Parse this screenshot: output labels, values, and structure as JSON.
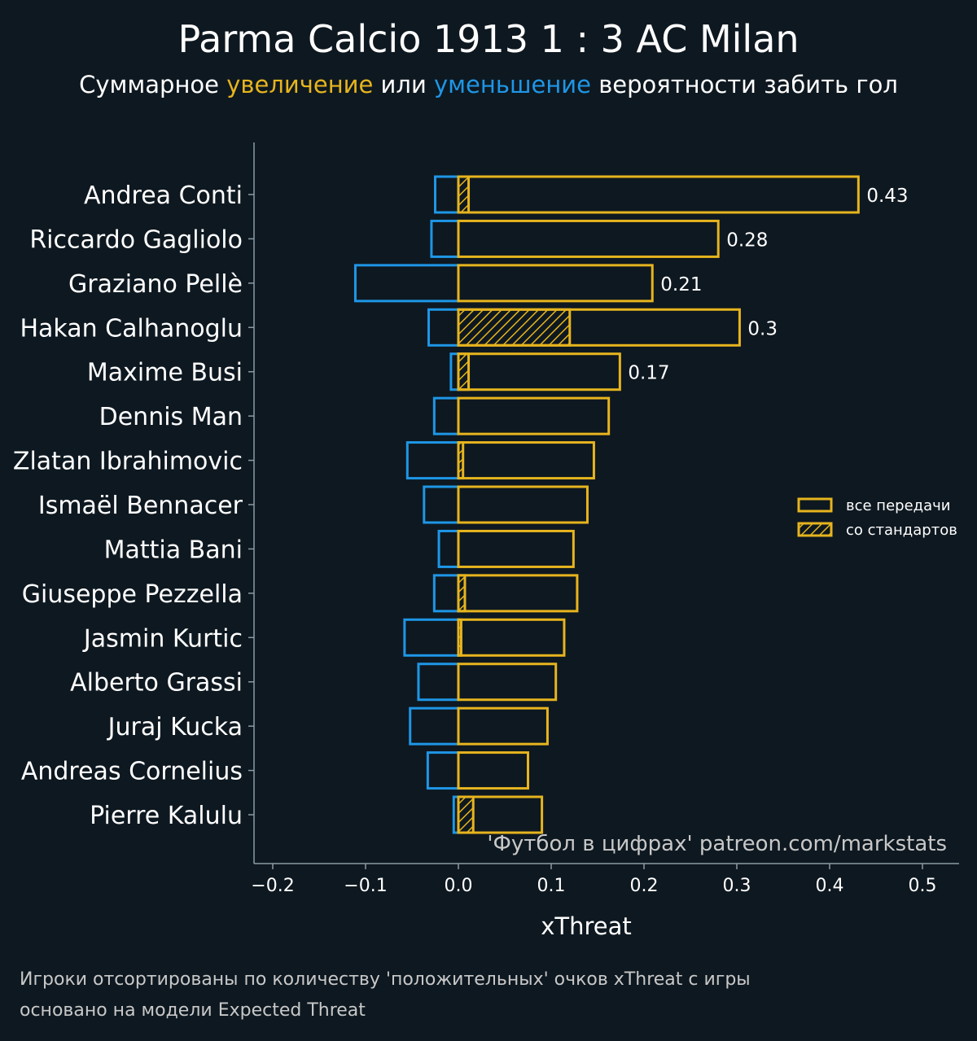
{
  "title": "Parma Calcio 1913 1 : 3 AC Milan",
  "subtitle": {
    "part1": "Суммарное ",
    "increase": "увеличение",
    "part2": " или ",
    "decrease": "уменьшение",
    "part3": " вероятности забить гол"
  },
  "colors": {
    "positive": "#e6b41e",
    "negative": "#1e96e6",
    "background": "#0e1820",
    "text": "#ffffff",
    "axis": "#8a9aa4"
  },
  "watermark": "'Футбол в цифрах' patreon.com/markstats",
  "footnotes": [
    "Игроки отсортированы по количеству 'положительных' очков xThreat с игры",
    "основано на модели Expected Threat"
  ],
  "chart_data": {
    "type": "bar",
    "orientation": "horizontal",
    "xlabel": "xThreat",
    "xlim": [
      -0.22,
      0.54
    ],
    "xticks": [
      -0.2,
      -0.1,
      0.0,
      0.1,
      0.2,
      0.3,
      0.4,
      0.5
    ],
    "xtick_labels": [
      "−0.2",
      "−0.1",
      "0.0",
      "0.1",
      "0.2",
      "0.3",
      "0.4",
      "0.5"
    ],
    "legend": {
      "placement": "right",
      "entries": [
        "все передачи",
        "со стандартов"
      ]
    },
    "categories": [
      "Andrea Conti",
      "Riccardo Gagliolo",
      "Graziano Pellè",
      "Hakan Calhanoglu",
      "Maxime Busi",
      "Dennis Man",
      "Zlatan Ibrahimovic",
      "Ismaël Bennacer",
      "Mattia Bani",
      "Giuseppe Pezzella",
      "Jasmin Kurtic",
      "Alberto Grassi",
      "Juraj Kucka",
      "Andreas Cornelius",
      "Pierre Kalulu"
    ],
    "series": [
      {
        "name": "все передачи (положительные)",
        "values": [
          0.431,
          0.28,
          0.209,
          0.303,
          0.174,
          0.162,
          0.146,
          0.139,
          0.124,
          0.128,
          0.114,
          0.105,
          0.096,
          0.075,
          0.09
        ]
      },
      {
        "name": "все передачи (отрицательные)",
        "values": [
          -0.025,
          -0.029,
          -0.111,
          -0.032,
          -0.008,
          -0.026,
          -0.055,
          -0.037,
          -0.021,
          -0.026,
          -0.058,
          -0.043,
          -0.052,
          -0.033,
          -0.005
        ]
      },
      {
        "name": "со стандартов",
        "values": [
          0.011,
          0,
          0,
          0.12,
          0.011,
          0,
          0.005,
          0,
          0,
          0.007,
          0.003,
          0,
          0,
          0,
          0.016
        ]
      }
    ],
    "data_labels": [
      "0.43",
      "0.28",
      "0.21",
      "0.3",
      "0.17",
      "",
      "",
      "",
      "",
      "",
      "",
      "",
      "",
      "",
      ""
    ]
  }
}
